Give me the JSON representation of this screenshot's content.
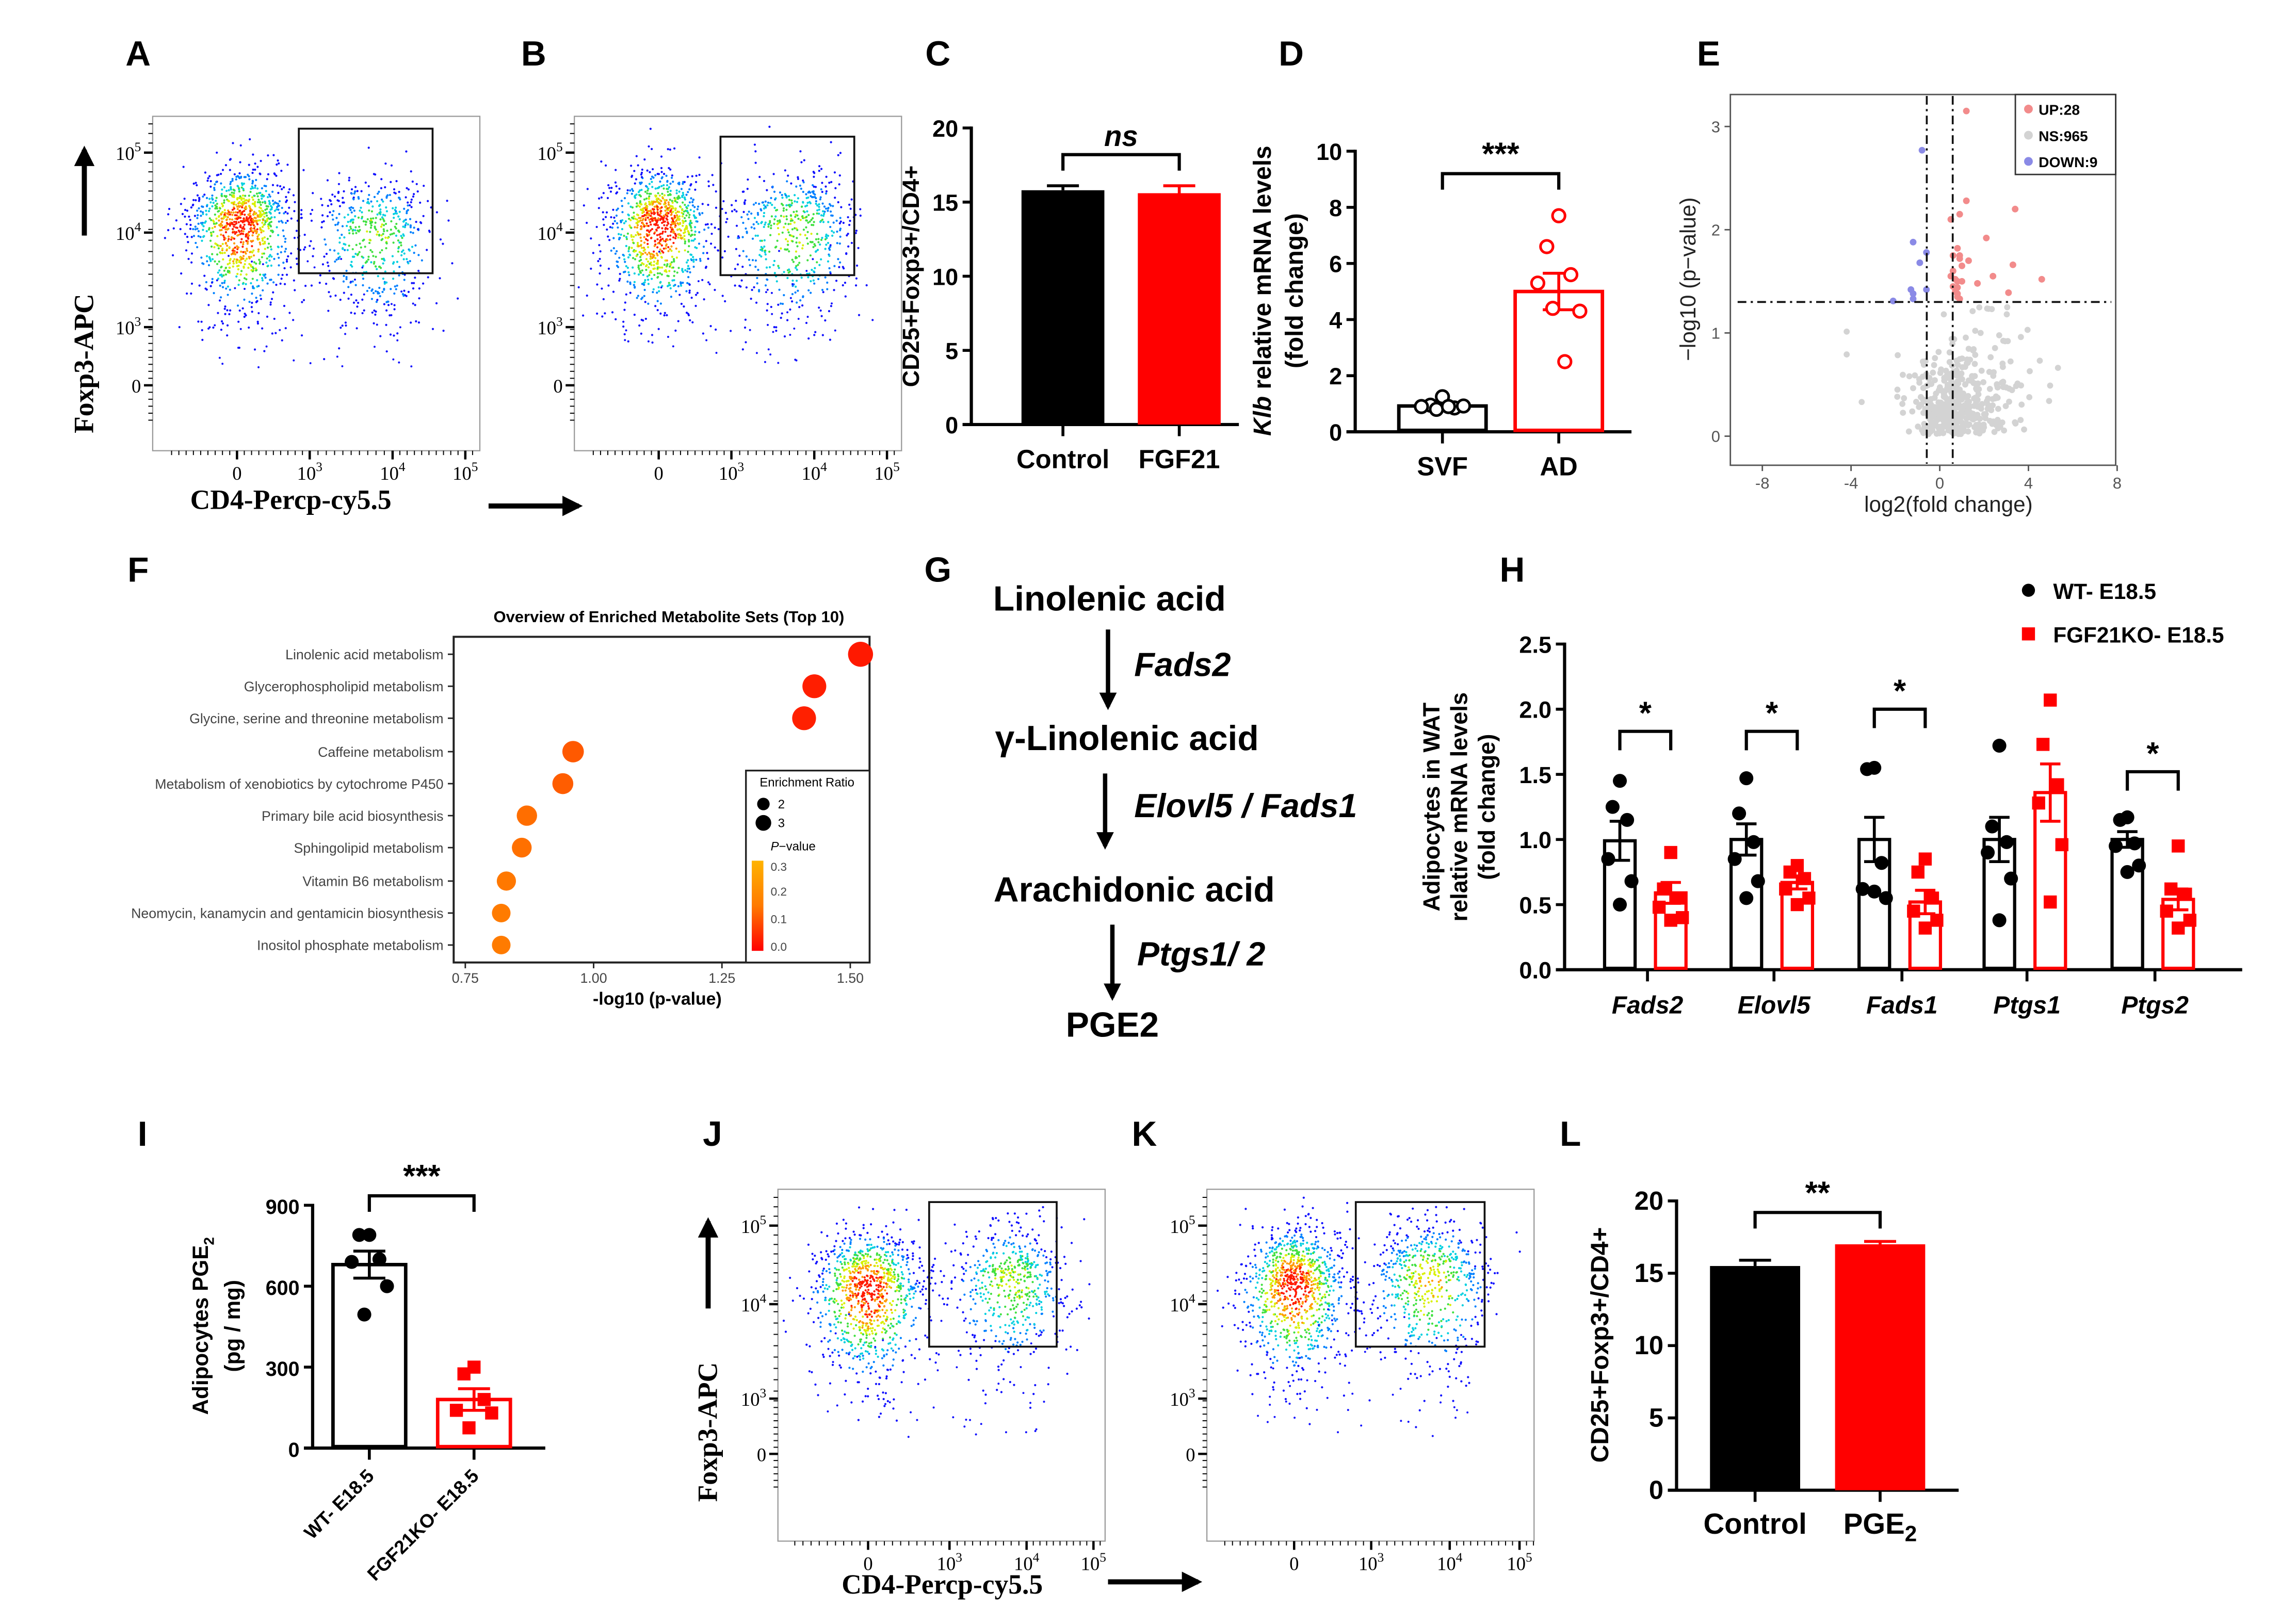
{
  "panel_labels": [
    "A",
    "B",
    "C",
    "D",
    "E",
    "F",
    "G",
    "H",
    "I",
    "J",
    "K",
    "L"
  ],
  "pathway": {
    "metabolites": [
      "Linolenic acid",
      "γ-Linolenic acid",
      "Arachidonic acid",
      "PGE2"
    ],
    "enzymes": [
      "Fads2",
      "Elovl5 / Fads1",
      "Ptgs1/ 2"
    ]
  },
  "chart_data": [
    {
      "panel": "A",
      "type": "scatter",
      "subtype": "flow-cytometry-density",
      "xlabel": "CD4-Percp-cy5.5",
      "ylabel": "Foxp3-APC",
      "xticks": [
        {
          "base": "0"
        },
        {
          "base": "10",
          "exp": "3"
        },
        {
          "base": "10",
          "exp": "4"
        },
        {
          "base": "10",
          "exp": "5"
        }
      ],
      "yticks": [
        {
          "base": "0"
        },
        {
          "base": "10",
          "exp": "3"
        },
        {
          "base": "10",
          "exp": "4"
        },
        {
          "base": "10",
          "exp": "5"
        }
      ],
      "populations": [
        {
          "x_center": 0.05,
          "y_center": 2.1,
          "x_sd": 0.33,
          "y_sd": 0.38,
          "events": 1000,
          "peak": 1.0
        },
        {
          "x_center": 1.8,
          "y_center": 2.0,
          "x_sd": 0.38,
          "y_sd": 0.4,
          "events": 520,
          "peak": 0.55
        }
      ],
      "gate": {
        "x": [
          0.85,
          2.55
        ],
        "y": [
          1.57,
          3.3
        ]
      }
    },
    {
      "panel": "B",
      "type": "scatter",
      "subtype": "flow-cytometry-density",
      "xticks": [
        {
          "base": "0"
        },
        {
          "base": "10",
          "exp": "3"
        },
        {
          "base": "10",
          "exp": "4"
        },
        {
          "base": "10",
          "exp": "5"
        }
      ],
      "yticks": [
        {
          "base": "0"
        },
        {
          "base": "10",
          "exp": "3"
        },
        {
          "base": "10",
          "exp": "4"
        },
        {
          "base": "10",
          "exp": "5"
        }
      ],
      "populations": [
        {
          "x_center": 0.0,
          "y_center": 2.1,
          "x_sd": 0.33,
          "y_sd": 0.38,
          "events": 1000,
          "peak": 1.0
        },
        {
          "x_center": 1.75,
          "y_center": 2.05,
          "x_sd": 0.4,
          "y_sd": 0.42,
          "events": 560,
          "peak": 0.6
        }
      ],
      "gate": {
        "x": [
          0.85,
          2.55
        ],
        "y": [
          1.55,
          3.2
        ]
      }
    },
    {
      "panel": "C",
      "type": "bar",
      "ylabel": "CD25+Foxp3+/CD4+",
      "ylim": [
        0,
        20
      ],
      "yticks": [
        0,
        5,
        10,
        15,
        20
      ],
      "categories": [
        "Control",
        "FGF21"
      ],
      "values": [
        15.8,
        15.6
      ],
      "sem": [
        0.3,
        0.5
      ],
      "colors": [
        "#000000",
        "#ff0000"
      ],
      "significance": {
        "label": "ns",
        "pair": [
          0,
          1
        ],
        "y": 18.2
      }
    },
    {
      "panel": "D",
      "type": "bar",
      "ylabel_gene": "Klb",
      "ylabel": " relative mRNA levels",
      "ylabel2": "(fold change)",
      "ylim": [
        0,
        10
      ],
      "yticks": [
        0,
        2,
        4,
        6,
        8,
        10
      ],
      "categories": [
        "SVF",
        "AD"
      ],
      "values": [
        0.92,
        5.0
      ],
      "sem": [
        0.07,
        0.65
      ],
      "points": [
        [
          1.25,
          0.95,
          0.85,
          0.9,
          0.92,
          0.8,
          0.9
        ],
        [
          7.7,
          6.6,
          5.6,
          5.3,
          4.3,
          4.4,
          2.5
        ]
      ],
      "point_shapes": [
        "open-circle",
        "open-circle"
      ],
      "colors": [
        "#000000",
        "#ff0000"
      ],
      "significance": {
        "label": "***",
        "pair": [
          0,
          1
        ],
        "y": 9.2
      }
    },
    {
      "panel": "E",
      "type": "scatter",
      "subtype": "volcano",
      "xlabel": "log2(fold change)",
      "ylabel": "−log10 (p−value)",
      "xlim": [
        -8,
        8
      ],
      "ylim": [
        -0.1,
        3.3
      ],
      "xticks": [
        "-8",
        "-4",
        "0",
        "4",
        "8"
      ],
      "xtick_values": [
        -8,
        -4,
        0,
        4,
        8
      ],
      "yticks": [
        "0",
        "1",
        "2",
        "3"
      ],
      "ytick_values": [
        0,
        1,
        2,
        3
      ],
      "thresholds": {
        "log2fc": [
          -0.585,
          0.585
        ],
        "neg_log10_p": 1.3
      },
      "legend": [
        {
          "label": "UP:28",
          "color": "#f28b8b"
        },
        {
          "label": "NS:965",
          "color": "#d3d3d3"
        },
        {
          "label": "DOWN:9",
          "color": "#8a8ae6"
        }
      ],
      "up_points": [
        [
          1.2,
          3.15
        ],
        [
          1.2,
          2.28
        ],
        [
          0.9,
          2.15
        ],
        [
          0.5,
          2.1
        ],
        [
          3.4,
          2.2
        ],
        [
          2.1,
          1.92
        ],
        [
          0.8,
          1.82
        ],
        [
          0.6,
          1.75
        ],
        [
          0.9,
          1.75
        ],
        [
          0.9,
          1.72
        ],
        [
          1.0,
          1.65
        ],
        [
          3.3,
          1.66
        ],
        [
          0.5,
          1.55
        ],
        [
          0.7,
          1.52
        ],
        [
          0.8,
          1.5
        ],
        [
          4.6,
          1.52
        ],
        [
          1.7,
          1.48
        ],
        [
          0.6,
          1.45
        ],
        [
          0.8,
          1.44
        ],
        [
          0.8,
          1.38
        ],
        [
          3.1,
          1.39
        ],
        [
          0.8,
          1.35
        ],
        [
          0.7,
          1.4
        ],
        [
          1.0,
          1.5
        ],
        [
          0.6,
          1.6
        ],
        [
          1.3,
          1.7
        ],
        [
          2.4,
          1.55
        ],
        [
          0.9,
          1.33
        ]
      ],
      "down_points": [
        [
          -0.8,
          2.77
        ],
        [
          -1.2,
          1.88
        ],
        [
          -0.6,
          1.78
        ],
        [
          -0.9,
          1.68
        ],
        [
          -1.3,
          1.42
        ],
        [
          -1.2,
          1.38
        ],
        [
          -0.6,
          1.42
        ],
        [
          -1.2,
          1.33
        ],
        [
          -2.1,
          1.31
        ]
      ],
      "ns_count": 965
    },
    {
      "panel": "F",
      "type": "scatter",
      "subtype": "enrichment-dotplot",
      "title": "Overview of Enriched Metabolite Sets (Top 10)",
      "xlabel": "-log10 (p-value)",
      "xlim": [
        0.73,
        1.56
      ],
      "xticks": [
        "0.75",
        "1.00",
        "1.25",
        "1.50"
      ],
      "xtick_values": [
        0.75,
        1.0,
        1.25,
        1.5
      ],
      "categories": [
        "Linolenic acid metabolism",
        "Glycerophospholipid metabolism",
        "Glycine, serine and threonine metabolism",
        "Caffeine metabolism",
        "Metabolism of xenobiotics by cytochrome P450",
        "Primary bile acid biosynthesis",
        "Sphingolipid metabolism",
        "Vitamin B6 metabolism",
        "Neomycin, kanamycin and gentamicin biosynthesis",
        "Inositol phosphate metabolism"
      ],
      "values": [
        1.52,
        1.43,
        1.41,
        0.96,
        0.94,
        0.87,
        0.86,
        0.83,
        0.82,
        0.82
      ],
      "enrichment_ratio": [
        3.2,
        3.0,
        3.0,
        2.6,
        2.5,
        2.4,
        2.3,
        2.2,
        2.1,
        2.1
      ],
      "legend": {
        "size_title": "Enrichment Ratio",
        "size_labels": [
          "2",
          "3"
        ],
        "size_values": [
          2,
          3
        ],
        "color_title_p": "P",
        "color_title_rest": "−value",
        "color_labels": [
          "0.3",
          "0.2",
          "0.1",
          "0.0"
        ],
        "color_values": [
          0.3,
          0.2,
          0.1,
          0.0
        ],
        "color_low": "#ff0000",
        "color_mid": "#ff7a00",
        "color_high": "#ffb300"
      }
    },
    {
      "panel": "H",
      "type": "bar",
      "ylabel_lines": [
        "Adipocytes in WAT",
        "relative mRNA levels",
        "(fold change)"
      ],
      "ylim": [
        0,
        2.5
      ],
      "yticks": [
        "0.0",
        "0.5",
        "1.0",
        "1.5",
        "2.0",
        "2.5"
      ],
      "ytick_values": [
        0,
        0.5,
        1,
        1.5,
        2,
        2.5
      ],
      "categories": [
        "Fads2",
        "Elovl5",
        "Fads1",
        "Ptgs1",
        "Ptgs2"
      ],
      "series": [
        {
          "name": "WT- E18.5",
          "color": "#000000",
          "shape": "circle",
          "values": [
            0.99,
            1.0,
            1.0,
            1.0,
            1.0
          ],
          "sem": [
            0.15,
            0.12,
            0.17,
            0.17,
            0.06
          ],
          "points": [
            [
              1.45,
              1.25,
              1.15,
              0.85,
              0.68,
              0.5
            ],
            [
              1.47,
              1.2,
              0.98,
              0.85,
              0.68,
              0.55
            ],
            [
              1.55,
              1.54,
              0.82,
              0.62,
              0.55,
              0.6
            ],
            [
              1.72,
              1.1,
              0.98,
              0.9,
              0.7,
              0.38
            ],
            [
              1.17,
              1.15,
              0.97,
              0.95,
              0.8,
              0.75
            ]
          ]
        },
        {
          "name": "FGF21KO- E18.5",
          "color": "#ff0000",
          "shape": "square",
          "values": [
            0.59,
            0.67,
            0.52,
            1.36,
            0.54
          ],
          "sem": [
            0.08,
            0.05,
            0.09,
            0.22,
            0.08
          ],
          "points": [
            [
              0.9,
              0.62,
              0.55,
              0.48,
              0.4,
              0.38
            ],
            [
              0.8,
              0.75,
              0.7,
              0.62,
              0.55,
              0.5
            ],
            [
              0.85,
              0.75,
              0.55,
              0.45,
              0.38,
              0.32
            ],
            [
              2.07,
              1.73,
              1.42,
              1.28,
              0.96,
              0.52
            ],
            [
              0.95,
              0.62,
              0.58,
              0.45,
              0.38,
              0.32
            ]
          ]
        }
      ],
      "significance": [
        {
          "category": 0,
          "label": "*",
          "y": 1.83
        },
        {
          "category": 1,
          "label": "*",
          "y": 1.83
        },
        {
          "category": 2,
          "label": "*",
          "y": 2.0
        },
        {
          "category": 4,
          "label": "*",
          "y": 1.52
        }
      ]
    },
    {
      "panel": "I",
      "type": "bar",
      "ylabel": "Adipocytes PGE",
      "ylabel_sub": "2",
      "ylabel2": "(pg / mg)",
      "ylim": [
        0,
        900
      ],
      "yticks": [
        0,
        300,
        600,
        900
      ],
      "categories": [
        "WT- E18.5",
        "FGF21KO- E18.5"
      ],
      "values": [
        680,
        180
      ],
      "sem": [
        50,
        40
      ],
      "points": [
        [
          790,
          790,
          700,
          690,
          600,
          495
        ],
        [
          300,
          275,
          180,
          140,
          130,
          75
        ]
      ],
      "point_shapes": [
        "circle",
        "square"
      ],
      "colors": [
        "#000000",
        "#ff0000"
      ],
      "significance": {
        "label": "***",
        "pair": [
          0,
          1
        ],
        "y": 935
      }
    },
    {
      "panel": "J",
      "type": "scatter",
      "subtype": "flow-cytometry-density",
      "xlabel": "CD4-Percp-cy5.5",
      "ylabel": "Foxp3-APC",
      "xticks": [
        {
          "base": "0"
        },
        {
          "base": "10",
          "exp": "3"
        },
        {
          "base": "10",
          "exp": "4"
        },
        {
          "base": "10",
          "exp": "5"
        }
      ],
      "yticks": [
        {
          "base": "0"
        },
        {
          "base": "10",
          "exp": "3"
        },
        {
          "base": "10",
          "exp": "4"
        },
        {
          "base": "10",
          "exp": "5"
        }
      ],
      "populations": [
        {
          "x_center": 0.0,
          "y_center": 2.2,
          "x_sd": 0.32,
          "y_sd": 0.4,
          "events": 1000,
          "peak": 1.0
        },
        {
          "x_center": 1.8,
          "y_center": 2.3,
          "x_sd": 0.4,
          "y_sd": 0.4,
          "events": 560,
          "peak": 0.6
        }
      ],
      "gate": {
        "x": [
          0.75,
          2.45
        ],
        "y": [
          1.55,
          3.3
        ]
      }
    },
    {
      "panel": "K",
      "type": "scatter",
      "subtype": "flow-cytometry-density",
      "xticks": [
        {
          "base": "0"
        },
        {
          "base": "10",
          "exp": "3"
        },
        {
          "base": "10",
          "exp": "4"
        },
        {
          "base": "10",
          "exp": "5"
        }
      ],
      "yticks": [
        {
          "base": "0"
        },
        {
          "base": "10",
          "exp": "3"
        },
        {
          "base": "10",
          "exp": "4"
        },
        {
          "base": "10",
          "exp": "5"
        }
      ],
      "populations": [
        {
          "x_center": 0.0,
          "y_center": 2.25,
          "x_sd": 0.32,
          "y_sd": 0.4,
          "events": 1000,
          "peak": 1.0
        },
        {
          "x_center": 1.75,
          "y_center": 2.3,
          "x_sd": 0.38,
          "y_sd": 0.42,
          "events": 620,
          "peak": 0.7
        }
      ],
      "gate": {
        "x": [
          0.8,
          2.5
        ],
        "y": [
          1.55,
          3.3
        ]
      }
    },
    {
      "panel": "L",
      "type": "bar",
      "ylabel": "CD25+Foxp3+/CD4+",
      "ylim": [
        0,
        20
      ],
      "yticks": [
        0,
        5,
        10,
        15,
        20
      ],
      "categories": [
        "Control",
        "PGE"
      ],
      "category_sub": [
        "",
        "2"
      ],
      "values": [
        15.5,
        17.0
      ],
      "sem": [
        0.4,
        0.2
      ],
      "colors": [
        "#000000",
        "#ff0000"
      ],
      "significance": {
        "label": "**",
        "pair": [
          0,
          1
        ],
        "y": 19.2
      }
    }
  ]
}
